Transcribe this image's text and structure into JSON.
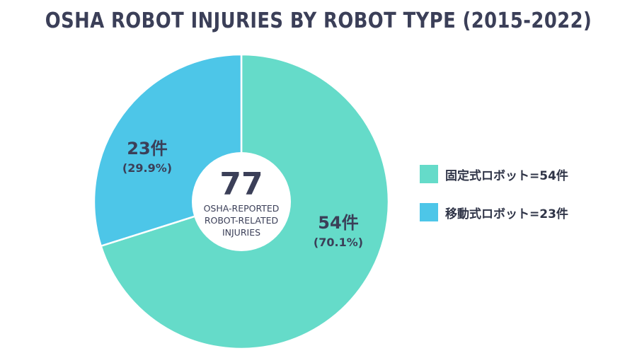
{
  "title": "OSHA ROBOT INJURIES BY ROBOT TYPE (2015-2022)",
  "colors": {
    "fixed": "#65dbc9",
    "mobile": "#4dc6e8",
    "text": "#3b3f58"
  },
  "center": {
    "total": "77",
    "line1": "OSHA-REPORTED",
    "line2": "ROBOT-RELATED",
    "line3": "INJURIES"
  },
  "chart_data": {
    "type": "pie",
    "title": "OSHA ROBOT INJURIES BY ROBOT TYPE (2015-2022)",
    "total": 77,
    "slices": [
      {
        "name": "固定式ロボット",
        "value": 54,
        "value_label": "54件",
        "percent_label": "(70.1%)",
        "legend": "固定式ロボット=54件",
        "color": "#65dbc9"
      },
      {
        "name": "移動式ロボット",
        "value": 23,
        "value_label": "23件",
        "percent_label": "(29.9%)",
        "legend": "移動式ロボット=23件",
        "color": "#4dc6e8"
      }
    ],
    "legend_position": "right"
  }
}
